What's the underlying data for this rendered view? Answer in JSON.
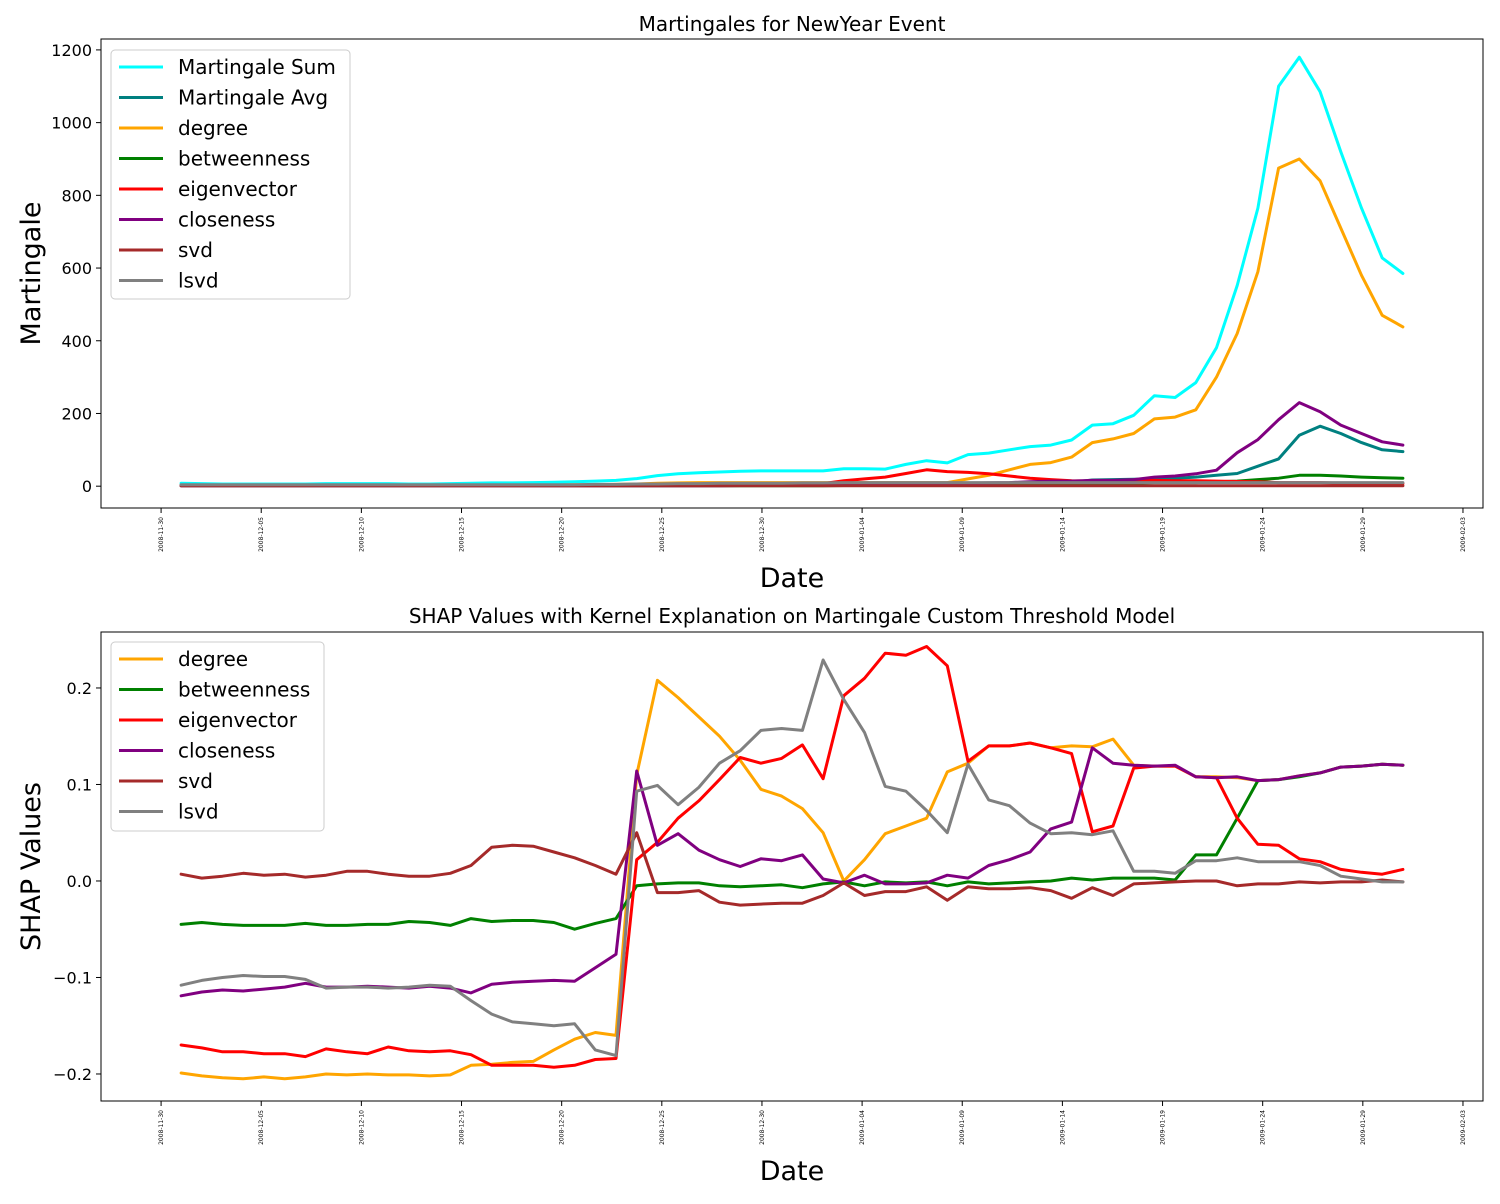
{
  "chart_data": [
    {
      "type": "line",
      "title": "Martingales for NewYear Event",
      "xlabel": "Date",
      "ylabel": "Martingale",
      "xlim": [
        "2008-11-27",
        "2009-02-04"
      ],
      "ylim": [
        -60,
        1230
      ],
      "x_ticks": [
        "2008-11-30",
        "2008-12-05",
        "2008-12-10",
        "2008-12-15",
        "2008-12-20",
        "2008-12-25",
        "2008-12-30",
        "2009-01-04",
        "2009-01-09",
        "2009-01-14",
        "2009-01-19",
        "2009-01-24",
        "2009-01-29",
        "2009-02-03"
      ],
      "y_ticks": [
        0,
        200,
        400,
        600,
        800,
        1000,
        1200
      ],
      "y_tick_labels": [
        "0",
        "200",
        "400",
        "600",
        "800",
        "1000",
        "1200"
      ],
      "legend_position": "upper-left",
      "grid": false,
      "x_start": "2008-12-01",
      "x_end": "2009-01-31",
      "series": [
        {
          "name": "Martingale Sum",
          "color": "#00ffff",
          "values": [
            8,
            7,
            6,
            6,
            6,
            6,
            6,
            7,
            7,
            7,
            7,
            6,
            6,
            7,
            8,
            9,
            9,
            10,
            11,
            12,
            14,
            16,
            21,
            29,
            34,
            37,
            39,
            41,
            42,
            42,
            42,
            42,
            48,
            48,
            47,
            60,
            70,
            64,
            87,
            91,
            100,
            109,
            113,
            127,
            168,
            172,
            195,
            249,
            244,
            285,
            381,
            552,
            765,
            1100,
            1180,
            1085,
            920,
            765,
            628,
            585
          ]
        },
        {
          "name": "Martingale Avg",
          "color": "#008080",
          "values": [
            2,
            2,
            2,
            2,
            2,
            2,
            2,
            2,
            2,
            2,
            2,
            2,
            2,
            2,
            2,
            3,
            3,
            3,
            3,
            3,
            3,
            3,
            3,
            3,
            3,
            4,
            4,
            4,
            4,
            4,
            4,
            4,
            4,
            4,
            4,
            5,
            5,
            5,
            6,
            6,
            7,
            8,
            9,
            11,
            17,
            18,
            19,
            20,
            22,
            25,
            30,
            35,
            55,
            75,
            140,
            165,
            145,
            120,
            100,
            95
          ]
        },
        {
          "name": "degree",
          "color": "#ffa500",
          "values": [
            3,
            3,
            3,
            3,
            3,
            3,
            3,
            3,
            3,
            3,
            3,
            3,
            3,
            3,
            3,
            3,
            3,
            3,
            3,
            4,
            4,
            5,
            6,
            8,
            9,
            10,
            10,
            10,
            10,
            10,
            10,
            10,
            10,
            10,
            10,
            10,
            10,
            10,
            20,
            30,
            45,
            60,
            65,
            80,
            120,
            130,
            145,
            185,
            190,
            210,
            300,
            420,
            590,
            875,
            900,
            840,
            710,
            580,
            470,
            438
          ]
        },
        {
          "name": "betweenness",
          "color": "#008000",
          "values": [
            1,
            1,
            1,
            1,
            1,
            1,
            1,
            1,
            1,
            1,
            1,
            1,
            1,
            1,
            1,
            1,
            1,
            1,
            1,
            1,
            1,
            1,
            1,
            1,
            1,
            1,
            1,
            1,
            1,
            1,
            1,
            1,
            2,
            2,
            2,
            2,
            2,
            2,
            3,
            3,
            3,
            3,
            4,
            5,
            6,
            7,
            8,
            10,
            10,
            10,
            12,
            14,
            18,
            22,
            30,
            30,
            28,
            25,
            23,
            22
          ]
        },
        {
          "name": "eigenvector",
          "color": "#ff0000",
          "values": [
            2,
            2,
            2,
            2,
            2,
            2,
            2,
            2,
            2,
            2,
            2,
            2,
            2,
            2,
            2,
            2,
            2,
            2,
            2,
            2,
            2,
            2,
            3,
            3,
            3,
            3,
            3,
            4,
            4,
            5,
            5,
            7,
            15,
            20,
            25,
            35,
            45,
            40,
            38,
            34,
            28,
            22,
            18,
            15,
            14,
            14,
            15,
            16,
            15,
            15,
            14,
            13,
            12,
            10,
            10,
            10,
            8,
            8,
            8,
            7
          ]
        },
        {
          "name": "closeness",
          "color": "#800080",
          "values": [
            1,
            1,
            1,
            1,
            1,
            1,
            1,
            1,
            1,
            1,
            1,
            1,
            1,
            1,
            1,
            1,
            1,
            1,
            1,
            1,
            1,
            1,
            1,
            1,
            1,
            1,
            1,
            2,
            2,
            2,
            2,
            2,
            2,
            2,
            2,
            2,
            3,
            3,
            8,
            9,
            10,
            12,
            14,
            14,
            16,
            16,
            18,
            25,
            28,
            34,
            44,
            92,
            128,
            183,
            230,
            205,
            168,
            145,
            122,
            113
          ]
        },
        {
          "name": "svd",
          "color": "#a52a2a",
          "values": [
            1,
            1,
            1,
            1,
            1,
            1,
            1,
            1,
            1,
            1,
            1,
            1,
            1,
            1,
            1,
            1,
            1,
            1,
            1,
            1,
            1,
            1,
            1,
            1,
            1,
            1,
            1,
            1,
            1,
            1,
            1,
            1,
            1,
            1,
            1,
            1,
            1,
            1,
            1,
            1,
            1,
            1,
            1,
            1,
            1,
            1,
            1,
            1,
            1,
            1,
            1,
            1,
            1,
            1,
            1,
            1,
            1,
            1,
            1,
            1
          ]
        },
        {
          "name": "lsvd",
          "color": "#808080",
          "values": [
            4,
            4,
            4,
            4,
            4,
            4,
            4,
            4,
            4,
            4,
            4,
            4,
            4,
            4,
            4,
            4,
            4,
            4,
            4,
            4,
            5,
            5,
            6,
            6,
            7,
            7,
            8,
            8,
            8,
            8,
            9,
            9,
            10,
            10,
            10,
            10,
            10,
            10,
            10,
            10,
            10,
            10,
            10,
            10,
            10,
            10,
            10,
            10,
            10,
            10,
            10,
            10,
            10,
            10,
            10,
            10,
            10,
            10,
            10,
            10
          ]
        }
      ]
    },
    {
      "type": "line",
      "title": "SHAP Values with Kernel Explanation on Martingale Custom Threshold Model",
      "xlabel": "Date",
      "ylabel": "SHAP Values",
      "xlim": [
        "2008-11-27",
        "2009-02-04"
      ],
      "ylim": [
        -0.228,
        0.258
      ],
      "x_ticks": [
        "2008-11-30",
        "2008-12-05",
        "2008-12-10",
        "2008-12-15",
        "2008-12-20",
        "2008-12-25",
        "2008-12-30",
        "2009-01-04",
        "2009-01-09",
        "2009-01-14",
        "2009-01-19",
        "2009-01-24",
        "2009-01-29",
        "2009-02-03"
      ],
      "y_ticks": [
        -0.2,
        -0.1,
        0.0,
        0.1,
        0.2
      ],
      "y_tick_labels": [
        "−0.2",
        "−0.1",
        "0.0",
        "0.1",
        "0.2"
      ],
      "legend_position": "upper-left",
      "grid": false,
      "x_start": "2008-12-01",
      "x_end": "2009-01-31",
      "series": [
        {
          "name": "degree",
          "color": "#ffa500",
          "values": [
            -0.199,
            -0.202,
            -0.204,
            -0.205,
            -0.203,
            -0.205,
            -0.203,
            -0.2,
            -0.201,
            -0.2,
            -0.201,
            -0.201,
            -0.202,
            -0.201,
            -0.191,
            -0.19,
            -0.188,
            -0.187,
            -0.175,
            -0.164,
            -0.157,
            -0.16,
            0.11,
            0.208,
            0.19,
            0.17,
            0.15,
            0.125,
            0.095,
            0.088,
            0.075,
            0.05,
            0.0,
            0.022,
            0.049,
            0.057,
            0.065,
            0.113,
            0.122,
            0.14,
            0.14,
            0.143,
            0.138,
            0.14,
            0.139,
            0.147,
            0.12,
            0.119,
            0.119,
            0.108,
            0.108,
            0.107,
            0.104,
            0.105,
            0.109,
            0.112,
            0.118,
            0.119,
            0.121,
            0.12
          ]
        },
        {
          "name": "betweenness",
          "color": "#008000",
          "values": [
            -0.045,
            -0.043,
            -0.045,
            -0.046,
            -0.046,
            -0.046,
            -0.044,
            -0.046,
            -0.046,
            -0.045,
            -0.045,
            -0.042,
            -0.043,
            -0.046,
            -0.039,
            -0.042,
            -0.041,
            -0.041,
            -0.043,
            -0.05,
            -0.044,
            -0.039,
            -0.005,
            -0.003,
            -0.002,
            -0.002,
            -0.005,
            -0.006,
            -0.005,
            -0.004,
            -0.007,
            -0.003,
            -0.001,
            -0.005,
            -0.001,
            -0.002,
            -0.001,
            -0.005,
            -0.001,
            -0.003,
            -0.002,
            -0.001,
            0.0,
            0.003,
            0.001,
            0.003,
            0.003,
            0.003,
            0.001,
            0.027,
            0.027,
            0.065,
            0.104,
            0.105,
            0.108,
            0.112,
            0.118,
            0.119,
            0.121,
            0.12
          ]
        },
        {
          "name": "eigenvector",
          "color": "#ff0000",
          "values": [
            -0.17,
            -0.173,
            -0.177,
            -0.177,
            -0.179,
            -0.179,
            -0.182,
            -0.174,
            -0.177,
            -0.179,
            -0.172,
            -0.176,
            -0.177,
            -0.176,
            -0.18,
            -0.191,
            -0.191,
            -0.191,
            -0.193,
            -0.191,
            -0.185,
            -0.184,
            0.022,
            0.04,
            0.065,
            0.083,
            0.105,
            0.128,
            0.122,
            0.127,
            0.141,
            0.106,
            0.192,
            0.21,
            0.236,
            0.234,
            0.243,
            0.223,
            0.124,
            0.14,
            0.14,
            0.143,
            0.138,
            0.132,
            0.051,
            0.057,
            0.117,
            0.119,
            0.119,
            0.108,
            0.107,
            0.065,
            0.038,
            0.037,
            0.023,
            0.02,
            0.012,
            0.009,
            0.007,
            0.012
          ]
        },
        {
          "name": "closeness",
          "color": "#800080",
          "values": [
            -0.119,
            -0.115,
            -0.113,
            -0.114,
            -0.112,
            -0.11,
            -0.106,
            -0.11,
            -0.11,
            -0.109,
            -0.11,
            -0.111,
            -0.109,
            -0.111,
            -0.116,
            -0.107,
            -0.105,
            -0.104,
            -0.103,
            -0.104,
            -0.09,
            -0.076,
            0.114,
            0.037,
            0.049,
            0.032,
            0.022,
            0.015,
            0.023,
            0.021,
            0.027,
            0.002,
            -0.002,
            0.006,
            -0.003,
            -0.003,
            -0.002,
            0.006,
            0.003,
            0.016,
            0.022,
            0.03,
            0.054,
            0.061,
            0.138,
            0.122,
            0.12,
            0.119,
            0.12,
            0.108,
            0.107,
            0.108,
            0.104,
            0.105,
            0.109,
            0.112,
            0.118,
            0.119,
            0.121,
            0.12
          ]
        },
        {
          "name": "svd",
          "color": "#a52a2a",
          "values": [
            0.007,
            0.003,
            0.005,
            0.008,
            0.006,
            0.007,
            0.004,
            0.006,
            0.01,
            0.01,
            0.007,
            0.005,
            0.005,
            0.008,
            0.016,
            0.035,
            0.037,
            0.036,
            0.03,
            0.024,
            0.016,
            0.007,
            0.05,
            -0.012,
            -0.012,
            -0.01,
            -0.022,
            -0.025,
            -0.024,
            -0.023,
            -0.023,
            -0.015,
            -0.002,
            -0.015,
            -0.011,
            -0.011,
            -0.006,
            -0.02,
            -0.006,
            -0.008,
            -0.008,
            -0.007,
            -0.01,
            -0.018,
            -0.007,
            -0.015,
            -0.003,
            -0.002,
            -0.001,
            0.0,
            0.0,
            -0.005,
            -0.003,
            -0.003,
            -0.001,
            -0.002,
            -0.001,
            -0.001,
            0.001,
            -0.001
          ]
        },
        {
          "name": "lsvd",
          "color": "#808080",
          "values": [
            -0.108,
            -0.103,
            -0.1,
            -0.098,
            -0.099,
            -0.099,
            -0.102,
            -0.111,
            -0.11,
            -0.11,
            -0.111,
            -0.11,
            -0.108,
            -0.109,
            -0.124,
            -0.138,
            -0.146,
            -0.148,
            -0.15,
            -0.148,
            -0.175,
            -0.181,
            0.093,
            0.099,
            0.079,
            0.097,
            0.122,
            0.135,
            0.156,
            0.158,
            0.156,
            0.229,
            0.188,
            0.154,
            0.098,
            0.093,
            0.073,
            0.05,
            0.121,
            0.084,
            0.078,
            0.06,
            0.049,
            0.05,
            0.048,
            0.052,
            0.01,
            0.01,
            0.008,
            0.021,
            0.021,
            0.024,
            0.02,
            0.02,
            0.02,
            0.016,
            0.005,
            0.002,
            -0.001,
            -0.001
          ]
        }
      ]
    }
  ]
}
